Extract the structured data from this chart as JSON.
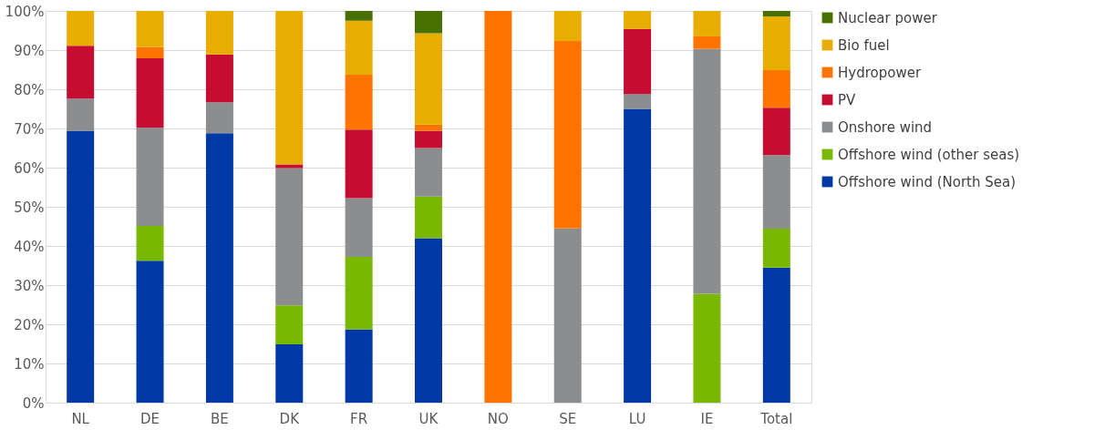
{
  "chart_data": {
    "type": "bar",
    "stacked": true,
    "categories": [
      "NL",
      "DE",
      "BE",
      "DK",
      "FR",
      "UK",
      "NO",
      "SE",
      "LU",
      "IE",
      "Total"
    ],
    "series": [
      {
        "name": "Offshore wind (North Sea)",
        "color": "#0039a6",
        "values": [
          69.4,
          36.2,
          68.8,
          14.9,
          18.7,
          42.0,
          0,
          0,
          75.0,
          0,
          34.5
        ]
      },
      {
        "name": "Offshore wind (other seas)",
        "color": "#7ab800",
        "values": [
          0,
          8.9,
          0,
          9.9,
          18.5,
          10.6,
          0,
          0,
          0,
          27.8,
          9.9
        ]
      },
      {
        "name": "Onshore wind",
        "color": "#8c8d8f",
        "values": [
          8.2,
          25.1,
          7.9,
          35.1,
          15.0,
          12.4,
          0,
          44.5,
          3.8,
          62.5,
          18.8
        ]
      },
      {
        "name": "PV",
        "color": "#c60c30",
        "values": [
          13.5,
          17.7,
          12.2,
          0.9,
          17.5,
          4.4,
          0,
          0,
          16.6,
          0,
          12.1
        ]
      },
      {
        "name": "Hydropower",
        "color": "#ff7300",
        "values": [
          0,
          2.9,
          0,
          0,
          14.0,
          1.6,
          100,
          47.8,
          0,
          3.2,
          9.6
        ]
      },
      {
        "name": "Bio fuel",
        "color": "#e8ad00",
        "values": [
          8.9,
          9.2,
          11.1,
          39.2,
          13.8,
          23.3,
          0,
          7.7,
          4.6,
          6.5,
          13.7
        ]
      },
      {
        "name": "Nuclear power",
        "color": "#477000",
        "values": [
          0,
          0,
          0,
          0,
          2.5,
          5.7,
          0,
          0,
          0,
          0,
          1.4
        ]
      }
    ],
    "ylim": [
      0,
      100
    ],
    "yticks": [
      {
        "value": 0,
        "label": "0%"
      },
      {
        "value": 10,
        "label": "10%"
      },
      {
        "value": 20,
        "label": "20%"
      },
      {
        "value": 30,
        "label": "30%"
      },
      {
        "value": 40,
        "label": "40%"
      },
      {
        "value": 50,
        "label": "50%"
      },
      {
        "value": 60,
        "label": "60%"
      },
      {
        "value": 70,
        "label": "70%"
      },
      {
        "value": 80,
        "label": "80%"
      },
      {
        "value": 90,
        "label": "90%"
      },
      {
        "value": 100,
        "label": "100%"
      }
    ],
    "grid": "y",
    "legend": "right"
  }
}
